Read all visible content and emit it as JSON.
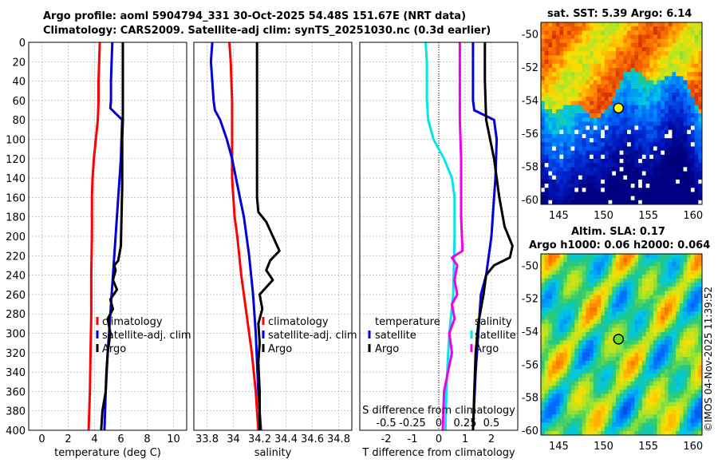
{
  "header": {
    "title_line1": "Argo profile: aoml 5904794_331 30-Oct-2025 54.48S 151.67E (NRT data)",
    "title_line2": "Climatology: CARS2009. Satellite-adj clim: synTS_20251030.nc (0.3d earlier)"
  },
  "copyright": "©IMOS 04-Nov-2025 11:39:52",
  "colors": {
    "climatology": "#ff0000",
    "satellite": "#0000dd",
    "argo": "#000000",
    "cyan": "#00e5ee",
    "magenta": "#ee00ee",
    "grid": "#b0b0b0"
  },
  "chart_data": [
    {
      "id": "temperature",
      "type": "line",
      "xlabel": "temperature (deg C)",
      "ylabel": "",
      "xlim": [
        -1,
        11
      ],
      "ylim": [
        0,
        400
      ],
      "y_reversed": true,
      "xticks": [
        0,
        2,
        4,
        6,
        8,
        10
      ],
      "yticks": [
        0,
        20,
        40,
        60,
        80,
        100,
        120,
        140,
        160,
        180,
        200,
        220,
        240,
        260,
        280,
        300,
        320,
        340,
        360,
        380,
        400
      ],
      "legend": [
        "climatology",
        "satellite-adj. clim",
        "Argo"
      ],
      "series": [
        {
          "name": "climatology",
          "color": "#ff0000",
          "points": [
            [
              4.4,
              0
            ],
            [
              4.35,
              20
            ],
            [
              4.3,
              40
            ],
            [
              4.3,
              60
            ],
            [
              4.25,
              80
            ],
            [
              4.1,
              100
            ],
            [
              3.95,
              120
            ],
            [
              3.85,
              140
            ],
            [
              3.8,
              160
            ],
            [
              3.8,
              200
            ],
            [
              3.75,
              240
            ],
            [
              3.75,
              280
            ],
            [
              3.7,
              320
            ],
            [
              3.65,
              360
            ],
            [
              3.55,
              400
            ]
          ]
        },
        {
          "name": "satellite-adj. clim",
          "color": "#0000dd",
          "points": [
            [
              5.35,
              0
            ],
            [
              5.3,
              20
            ],
            [
              5.25,
              40
            ],
            [
              5.25,
              60
            ],
            [
              5.2,
              68
            ],
            [
              6.1,
              80
            ],
            [
              6.05,
              100
            ],
            [
              6.0,
              120
            ],
            [
              5.9,
              140
            ],
            [
              5.8,
              160
            ],
            [
              5.6,
              200
            ],
            [
              5.4,
              240
            ],
            [
              5.2,
              280
            ],
            [
              5.0,
              320
            ],
            [
              4.85,
              360
            ],
            [
              4.75,
              400
            ]
          ]
        },
        {
          "name": "Argo",
          "color": "#000000",
          "points": [
            [
              6.15,
              0
            ],
            [
              6.15,
              20
            ],
            [
              6.15,
              60
            ],
            [
              6.15,
              80
            ],
            [
              6.1,
              100
            ],
            [
              6.1,
              120
            ],
            [
              6.1,
              150
            ],
            [
              6.05,
              180
            ],
            [
              6.0,
              210
            ],
            [
              5.8,
              225
            ],
            [
              5.5,
              230
            ],
            [
              5.6,
              235
            ],
            [
              5.4,
              245
            ],
            [
              5.7,
              255
            ],
            [
              5.2,
              265
            ],
            [
              5.4,
              275
            ],
            [
              5.0,
              285
            ],
            [
              5.2,
              300
            ],
            [
              5.0,
              320
            ],
            [
              4.9,
              340
            ],
            [
              4.85,
              360
            ],
            [
              4.6,
              380
            ],
            [
              4.5,
              400
            ]
          ]
        }
      ]
    },
    {
      "id": "salinity",
      "type": "line",
      "xlabel": "salinity",
      "ylabel": "",
      "xlim": [
        33.7,
        34.9
      ],
      "ylim": [
        0,
        400
      ],
      "y_reversed": true,
      "xticks": [
        33.8,
        34,
        34.2,
        34.4,
        34.6,
        34.8
      ],
      "legend": [
        "climatology",
        "satellite-adj. clim",
        "Argo"
      ],
      "series": [
        {
          "name": "climatology",
          "color": "#ff0000",
          "points": [
            [
              33.97,
              0
            ],
            [
              33.98,
              20
            ],
            [
              33.99,
              60
            ],
            [
              33.99,
              100
            ],
            [
              33.99,
              140
            ],
            [
              34.0,
              160
            ],
            [
              34.01,
              180
            ],
            [
              34.03,
              200
            ],
            [
              34.06,
              240
            ],
            [
              34.1,
              280
            ],
            [
              34.14,
              320
            ],
            [
              34.17,
              360
            ],
            [
              34.19,
              400
            ]
          ]
        },
        {
          "name": "satellite-adj. clim",
          "color": "#0000dd",
          "points": [
            [
              33.84,
              0
            ],
            [
              33.83,
              20
            ],
            [
              33.84,
              40
            ],
            [
              33.85,
              60
            ],
            [
              33.86,
              70
            ],
            [
              33.9,
              80
            ],
            [
              33.95,
              100
            ],
            [
              33.99,
              120
            ],
            [
              34.02,
              140
            ],
            [
              34.05,
              160
            ],
            [
              34.08,
              180
            ],
            [
              34.12,
              220
            ],
            [
              34.15,
              260
            ],
            [
              34.17,
              300
            ],
            [
              34.19,
              360
            ],
            [
              34.21,
              400
            ]
          ]
        },
        {
          "name": "Argo",
          "color": "#000000",
          "points": [
            [
              34.18,
              0
            ],
            [
              34.18,
              40
            ],
            [
              34.18,
              80
            ],
            [
              34.18,
              120
            ],
            [
              34.18,
              160
            ],
            [
              34.19,
              175
            ],
            [
              34.25,
              185
            ],
            [
              34.3,
              200
            ],
            [
              34.35,
              215
            ],
            [
              34.28,
              225
            ],
            [
              34.25,
              235
            ],
            [
              34.3,
              245
            ],
            [
              34.2,
              260
            ],
            [
              34.22,
              275
            ],
            [
              34.19,
              290
            ],
            [
              34.2,
              310
            ],
            [
              34.19,
              330
            ],
            [
              34.2,
              360
            ],
            [
              34.2,
              400
            ]
          ]
        }
      ]
    },
    {
      "id": "difference",
      "type": "line",
      "xlabel": "T difference from climatology",
      "xlabel_top": "S difference from climatology",
      "xlim": [
        -3,
        3
      ],
      "ylim": [
        0,
        400
      ],
      "y_reversed": true,
      "xticks": [
        -2,
        -1,
        0,
        1,
        2
      ],
      "xtick_labels_t": [
        "-2",
        "-1",
        "0",
        "1",
        "2"
      ],
      "xtick_labels_s": [
        "-0.5",
        "-0.25",
        "0",
        "0.25",
        "0.5"
      ],
      "legend_left": [
        "temperature",
        "satellite",
        "Argo"
      ],
      "legend_right": [
        "salinity",
        "satellite",
        "Argo"
      ],
      "series": [
        {
          "name": "temperature satellite",
          "color": "#00e5ee",
          "points": [
            [
              -0.5,
              0
            ],
            [
              -0.45,
              20
            ],
            [
              -0.45,
              60
            ],
            [
              -0.4,
              80
            ],
            [
              -0.2,
              100
            ],
            [
              0.2,
              120
            ],
            [
              0.5,
              140
            ],
            [
              0.6,
              160
            ],
            [
              0.6,
              200
            ],
            [
              0.55,
              260
            ],
            [
              0.4,
              300
            ],
            [
              0.3,
              350
            ],
            [
              0.25,
              400
            ]
          ]
        },
        {
          "name": "salinity satellite",
          "color": "#0000dd",
          "points": [
            [
              1.3,
              0
            ],
            [
              1.3,
              20
            ],
            [
              1.3,
              60
            ],
            [
              1.35,
              70
            ],
            [
              2.1,
              80
            ],
            [
              2.2,
              100
            ],
            [
              2.15,
              140
            ],
            [
              2.1,
              160
            ],
            [
              2.0,
              200
            ],
            [
              1.8,
              240
            ],
            [
              1.6,
              260
            ],
            [
              1.5,
              300
            ],
            [
              1.4,
              340
            ],
            [
              1.3,
              400
            ]
          ]
        },
        {
          "name": "temperature Argo",
          "color": "#ee00ee",
          "points": [
            [
              0.8,
              0
            ],
            [
              0.8,
              20
            ],
            [
              0.8,
              80
            ],
            [
              0.85,
              120
            ],
            [
              0.85,
              180
            ],
            [
              0.9,
              215
            ],
            [
              0.5,
              222
            ],
            [
              0.7,
              230
            ],
            [
              0.6,
              245
            ],
            [
              0.7,
              260
            ],
            [
              0.5,
              270
            ],
            [
              0.6,
              285
            ],
            [
              0.4,
              300
            ],
            [
              0.5,
              320
            ],
            [
              0.2,
              360
            ],
            [
              0.15,
              400
            ]
          ]
        },
        {
          "name": "salinity Argo",
          "color": "#000000",
          "points": [
            [
              1.75,
              0
            ],
            [
              1.75,
              40
            ],
            [
              1.8,
              80
            ],
            [
              2.1,
              120
            ],
            [
              2.3,
              160
            ],
            [
              2.5,
              190
            ],
            [
              2.8,
              210
            ],
            [
              2.7,
              222
            ],
            [
              2.1,
              230
            ],
            [
              1.8,
              240
            ],
            [
              1.7,
              260
            ],
            [
              1.5,
              290
            ],
            [
              1.4,
              320
            ],
            [
              1.35,
              360
            ],
            [
              1.3,
              400
            ]
          ]
        }
      ]
    },
    {
      "id": "sst_map",
      "type": "heatmap",
      "title": "sat. SST: 5.39 Argo: 6.14",
      "xticks": [
        145,
        150,
        155,
        160
      ],
      "yticks": [
        -50,
        -52,
        -54,
        -56,
        -58,
        -60
      ],
      "xlim": [
        143,
        161
      ],
      "ylim": [
        -60.3,
        -49.3
      ],
      "marker": [
        151.67,
        -54.48
      ]
    },
    {
      "id": "sla_map",
      "type": "heatmap",
      "title_line1": "Altim. SLA: 0.17",
      "title_line2": "Argo h1000: 0.06 h2000: 0.064",
      "xticks": [
        145,
        150,
        155,
        160
      ],
      "yticks": [
        -50,
        -52,
        -54,
        -56,
        -58,
        -60
      ],
      "xlim": [
        143,
        161
      ],
      "ylim": [
        -60.3,
        -49.3
      ],
      "marker": [
        151.67,
        -54.48
      ]
    }
  ]
}
